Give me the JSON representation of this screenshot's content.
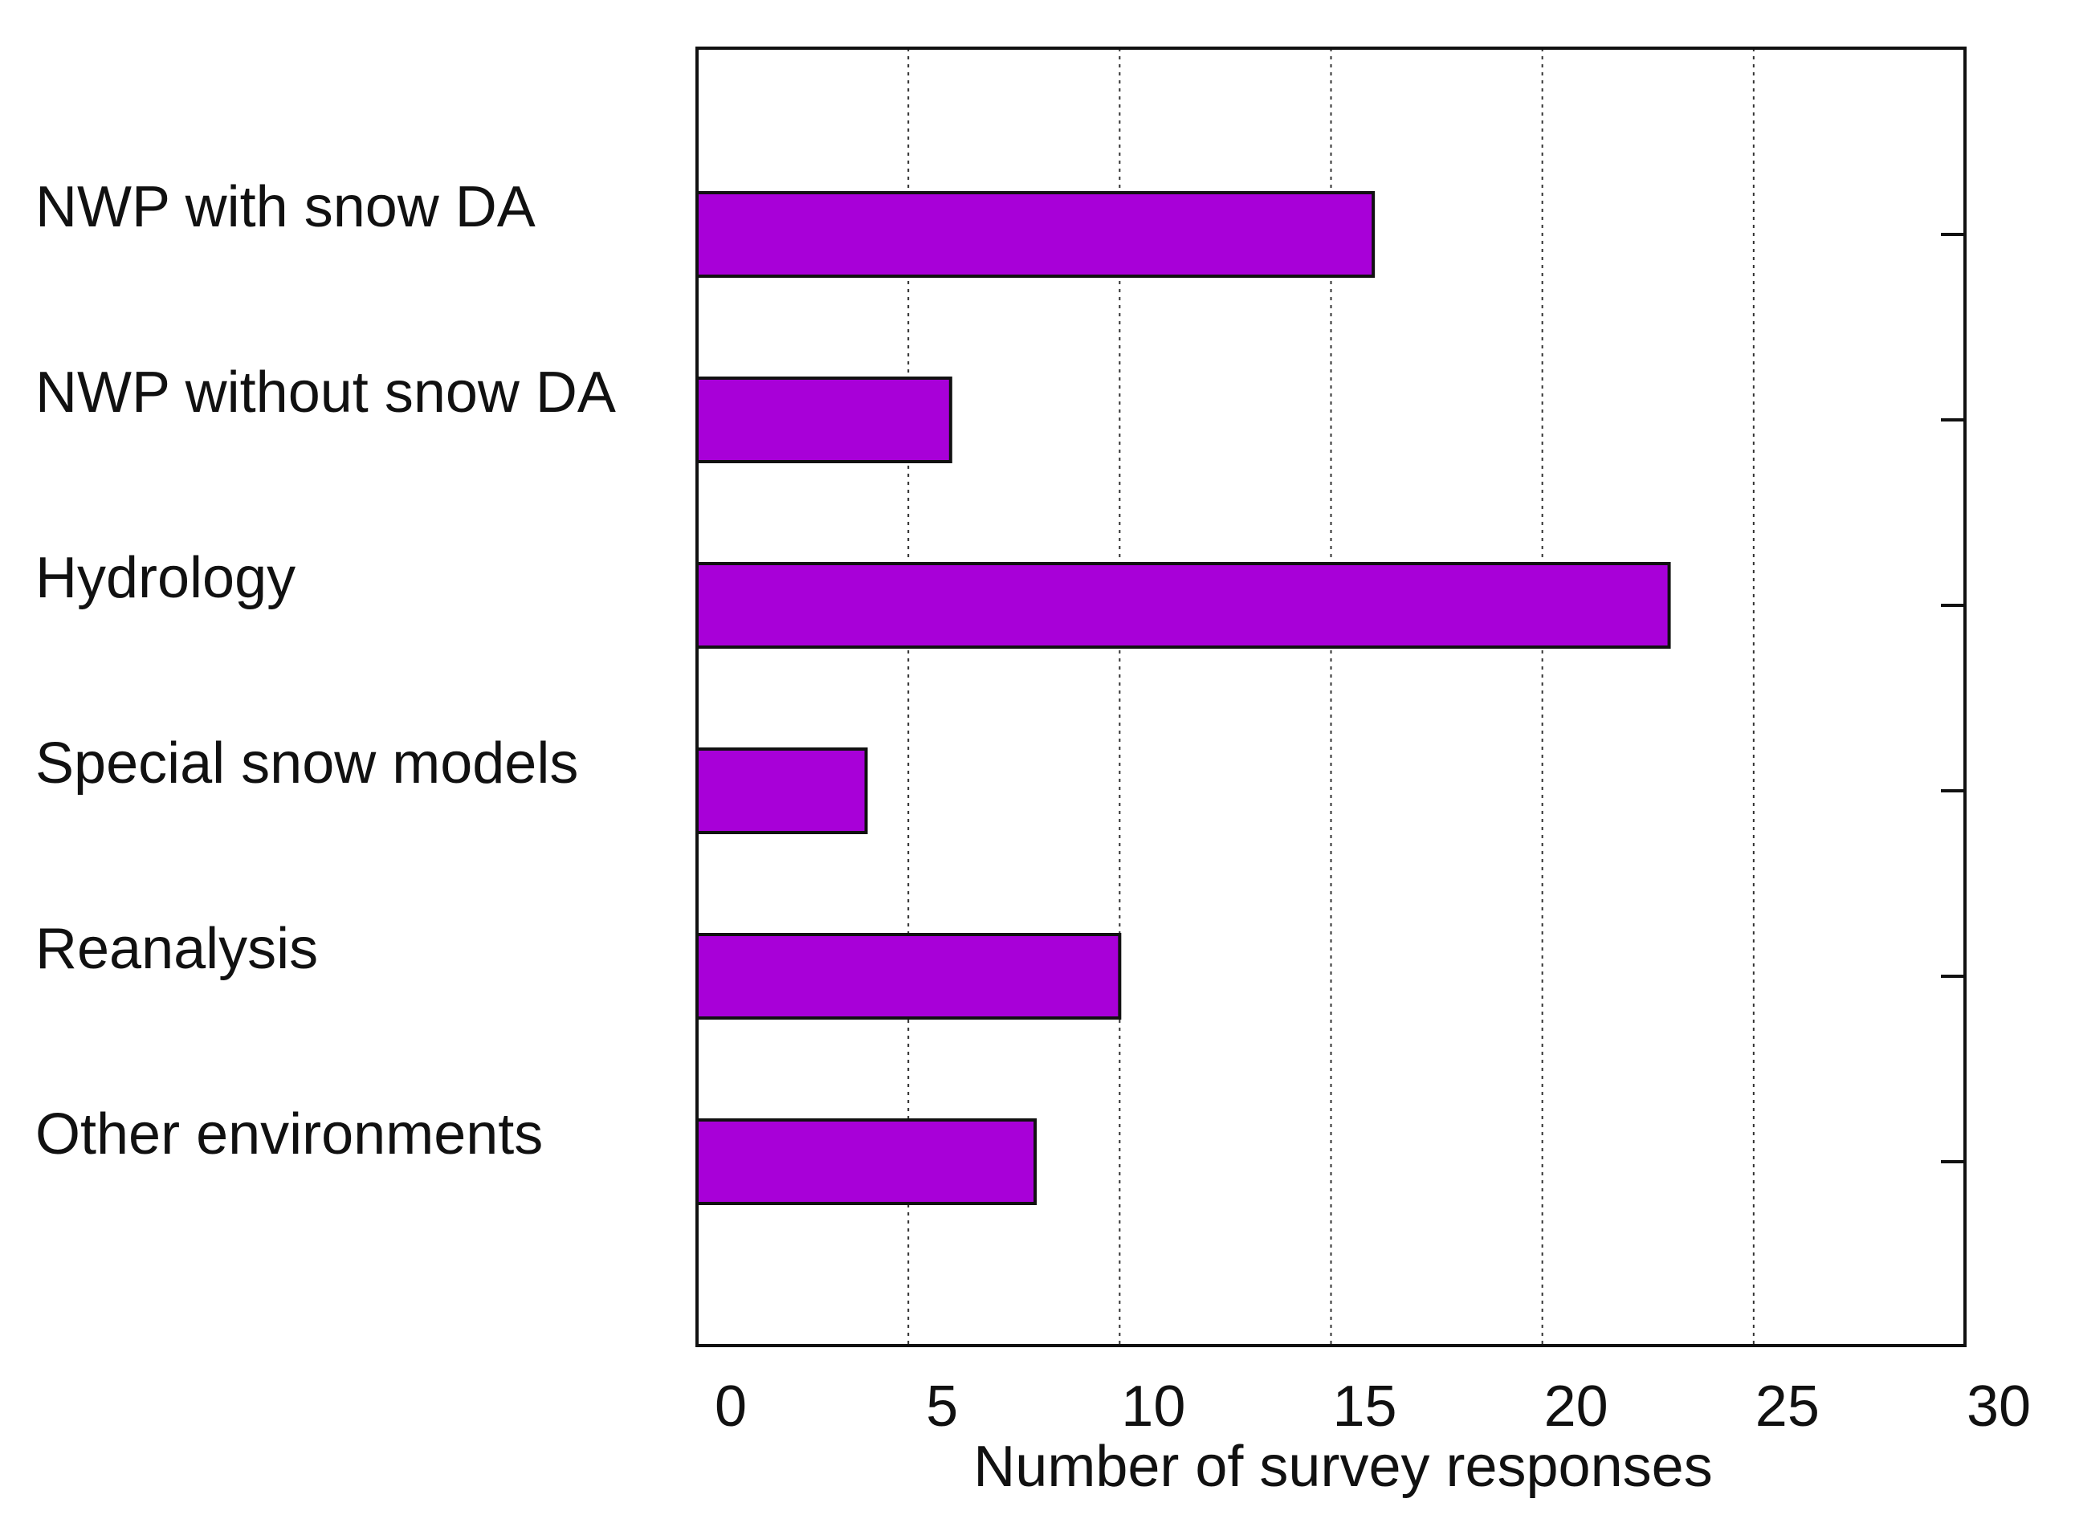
{
  "chart_data": {
    "type": "bar",
    "orientation": "horizontal",
    "title": "",
    "xlabel": "Number of survey responses",
    "ylabel": "",
    "xlim": [
      0,
      30
    ],
    "xticks": [
      0,
      5,
      10,
      15,
      20,
      25,
      30
    ],
    "grid": "vertical dotted",
    "categories": [
      "NWP with snow DA",
      "NWP without snow DA",
      "Hydrology",
      "Special snow models",
      "Reanalysis",
      "Other environments"
    ],
    "values": [
      16,
      6,
      23,
      4,
      10,
      8
    ],
    "colors": {
      "bar_fill": "#a800d8",
      "bar_stroke": "#111111",
      "axis": "#111111",
      "grid": "#333333"
    }
  }
}
